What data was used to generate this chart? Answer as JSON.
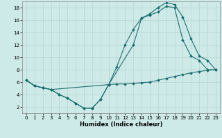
{
  "xlabel": "Humidex (Indice chaleur)",
  "xlim": [
    -0.5,
    23.5
  ],
  "ylim": [
    1,
    19
  ],
  "yticks": [
    2,
    4,
    6,
    8,
    10,
    12,
    14,
    16,
    18
  ],
  "xticks": [
    0,
    1,
    2,
    3,
    4,
    5,
    6,
    7,
    8,
    9,
    10,
    11,
    12,
    13,
    14,
    15,
    16,
    17,
    18,
    19,
    20,
    21,
    22,
    23
  ],
  "bg_color": "#ceeae8",
  "grid_color": "#b8d8d5",
  "line_color": "#1a6e6e",
  "line1_x": [
    0,
    1,
    2,
    3,
    4,
    5,
    6,
    7,
    8,
    9,
    10,
    11,
    12,
    13,
    14,
    15,
    16,
    17,
    18,
    19,
    20,
    21,
    22,
    23
  ],
  "line1_y": [
    6.3,
    5.4,
    5.1,
    4.8,
    4.0,
    3.4,
    2.6,
    1.8,
    1.8,
    3.2,
    5.6,
    5.7,
    5.7,
    5.8,
    5.9,
    6.0,
    6.3,
    6.6,
    6.9,
    7.2,
    7.5,
    7.7,
    7.9,
    8.0
  ],
  "line2_x": [
    0,
    1,
    2,
    3,
    4,
    5,
    6,
    7,
    8,
    9,
    10,
    11,
    12,
    13,
    14,
    15,
    16,
    17,
    18,
    19,
    20,
    21,
    22,
    23
  ],
  "line2_y": [
    6.3,
    5.4,
    5.1,
    4.8,
    4.0,
    3.4,
    2.6,
    1.8,
    1.8,
    3.2,
    5.6,
    8.5,
    12.0,
    14.5,
    16.3,
    16.8,
    17.3,
    18.2,
    18.0,
    12.8,
    10.2,
    9.5,
    8.0,
    8.0
  ],
  "line3_x": [
    0,
    1,
    2,
    3,
    10,
    13,
    14,
    15,
    16,
    17,
    18,
    19,
    20,
    21,
    22,
    23
  ],
  "line3_y": [
    6.3,
    5.4,
    5.1,
    4.8,
    5.6,
    12.0,
    16.3,
    17.0,
    18.0,
    18.8,
    18.5,
    16.5,
    13.0,
    10.2,
    9.5,
    8.0
  ]
}
